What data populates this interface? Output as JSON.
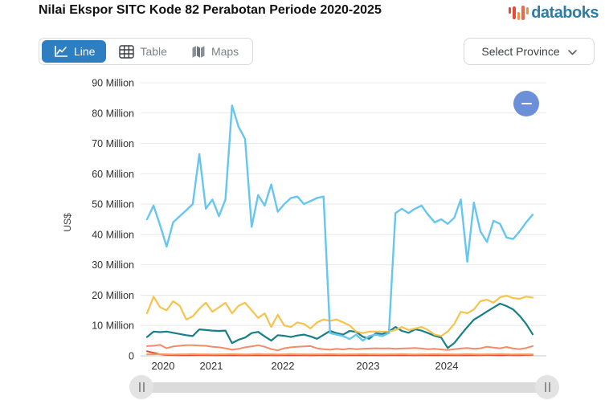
{
  "header": {
    "title": "Nilai Ekspor SITC Kode 82 Perabotan Periode 2020-2025",
    "logo_text": "databoks",
    "logo_bar_colors": [
      "#E64A36",
      "#E64A36",
      "#F29040",
      "#EA6A4E",
      "#F29040"
    ]
  },
  "toolbar": {
    "tabs": [
      {
        "label": "Line",
        "active": true,
        "icon": "line-chart-icon"
      },
      {
        "label": "Table",
        "active": false,
        "icon": "table-grid-icon"
      },
      {
        "label": "Maps",
        "active": false,
        "icon": "maps-icon"
      }
    ],
    "province_selector": {
      "label": "Select Province",
      "icon": "chevron-down-icon"
    }
  },
  "controls": {
    "zoom_out_button_icon": "minus-icon",
    "slider_handle_icon": "pause-bars-icon"
  },
  "accent_colors": {
    "active_tab_blue": "#2E7FC2",
    "zoom_button_blue": "#6B8FD9",
    "logo_text_blue": "#2E7BA6"
  },
  "chart_data": {
    "type": "line",
    "title": "Nilai Ekspor SITC Kode 82 Perabotan Periode 2020-2025",
    "ylabel": "US$",
    "unit": "US$ millions",
    "ylim_millions": [
      0,
      90
    ],
    "grid": true,
    "legend": "none",
    "y_ticks": [
      "0",
      "10 Million",
      "20 Million",
      "30 Million",
      "40 Million",
      "50 Million",
      "60 Million",
      "70 Million",
      "80 Million",
      "90 Million"
    ],
    "x_year_labels": [
      "2020",
      "2021",
      "2022",
      "2023",
      "2024"
    ],
    "x_range": "monthly, Jan 2020 - Dec 2024",
    "series": [
      {
        "name": "series-red",
        "color": "#E0492F",
        "width": 2,
        "values": [
          1.5,
          1.0,
          0.5,
          0.3,
          0.25,
          0.2,
          0.2,
          0.25,
          0.3,
          0.25,
          0.2,
          0.2,
          0.2,
          0.25,
          0.2,
          0.15,
          0.2,
          0.25,
          0.2,
          0.2,
          0.15,
          0.2,
          0.25,
          0.2,
          0.2,
          0.15,
          0.2,
          0.2,
          0.25,
          0.2,
          0.15,
          0.2,
          0.2,
          0.25,
          0.2,
          0.2,
          0.15,
          0.2,
          0.2,
          0.25,
          0.2,
          0.15,
          0.2,
          0.2,
          0.25,
          0.2,
          0.2,
          0.15,
          0.2,
          0.25,
          0.2,
          0.2,
          0.3,
          0.25,
          0.2,
          0.25,
          0.2,
          0.2,
          0.3,
          0.35
        ]
      },
      {
        "name": "series-orange",
        "color": "#F49A5F",
        "width": 2,
        "values": [
          0.5,
          0.5,
          0.55,
          0.5,
          0.45,
          0.5,
          0.5,
          0.55,
          0.5,
          0.5,
          0.45,
          0.5,
          0.5,
          0.55,
          0.5,
          0.45,
          0.5,
          0.55,
          0.5,
          0.5,
          0.45,
          0.5,
          0.55,
          0.5,
          0.5,
          0.45,
          0.5,
          0.5,
          0.55,
          0.5,
          0.45,
          0.5,
          0.5,
          0.55,
          0.5,
          0.5,
          0.45,
          0.5,
          0.5,
          0.55,
          0.5,
          0.45,
          0.5,
          0.5,
          0.55,
          0.5,
          0.5,
          0.45,
          0.5,
          0.55,
          0.5,
          0.45,
          0.5,
          0.5,
          0.55,
          0.5,
          0.45,
          0.5,
          0.5,
          0.5
        ]
      },
      {
        "name": "series-salmon",
        "color": "#F58A68",
        "width": 2,
        "values": [
          3.2,
          3.3,
          3.6,
          2.5,
          3.1,
          3.3,
          3.5,
          3.5,
          3.4,
          3.3,
          3.0,
          2.8,
          2.5,
          2.0,
          2.3,
          2.8,
          3.1,
          3.5,
          3.0,
          2.2,
          1.8,
          2.5,
          2.8,
          3.0,
          3.1,
          3.2,
          2.5,
          2.2,
          2.0,
          2.3,
          2.1,
          2.4,
          2.2,
          2.3,
          2.4,
          2.5,
          2.4,
          2.5,
          2.3,
          2.4,
          2.5,
          2.6,
          2.4,
          2.2,
          2.3,
          2.1,
          1.9,
          2.2,
          2.4,
          2.6,
          2.3,
          2.5,
          3.0,
          2.7,
          2.5,
          2.9,
          2.4,
          2.2,
          2.6,
          3.2
        ]
      },
      {
        "name": "series-teal",
        "color": "#168086",
        "width": 2.2,
        "values": [
          6.2,
          8.0,
          7.8,
          8.0,
          7.6,
          7.2,
          6.8,
          6.5,
          8.7,
          8.5,
          8.3,
          8.2,
          8.3,
          4.2,
          5.3,
          6.0,
          7.5,
          7.9,
          6.4,
          5.0,
          6.8,
          6.6,
          6.2,
          6.7,
          7.0,
          6.4,
          5.6,
          6.9,
          8.2,
          7.5,
          7.0,
          8.2,
          7.9,
          6.3,
          5.6,
          7.4,
          7.2,
          8.0,
          9.5,
          8.2,
          7.6,
          8.7,
          8.3,
          7.5,
          6.6,
          6.0,
          2.6,
          4.2,
          6.9,
          9.5,
          11.9,
          13.2,
          14.6,
          15.9,
          17.2,
          16.4,
          15.3,
          13.2,
          10.5,
          7.1
        ]
      },
      {
        "name": "series-yellow",
        "color": "#F6C34C",
        "width": 2.2,
        "values": [
          14,
          19.5,
          16,
          15,
          18,
          16.5,
          12,
          13,
          15.5,
          17.5,
          14.5,
          16,
          17.5,
          14,
          16.5,
          17.5,
          15,
          12.5,
          14,
          9.5,
          13.5,
          10,
          9.5,
          11,
          10.5,
          9,
          11,
          12,
          11.5,
          12,
          11,
          10,
          8,
          7.5,
          8,
          8,
          8,
          8,
          8.5,
          9.5,
          8.5,
          9,
          9.5,
          8.5,
          7,
          6.5,
          8,
          10.5,
          14.5,
          14,
          15.3,
          18,
          18.5,
          17.5,
          19.3,
          19.8,
          19,
          18.8,
          19.5,
          19.2
        ]
      },
      {
        "name": "series-light-blue",
        "color": "#67C6EF",
        "width": 2.4,
        "values": [
          45,
          49.5,
          43,
          36,
          44,
          46,
          48,
          50,
          66.5,
          48.5,
          51.5,
          46,
          51.5,
          82.5,
          75.5,
          71.5,
          42.5,
          53,
          49.5,
          56.5,
          47.5,
          50,
          52,
          52.5,
          50,
          51,
          52,
          52.5,
          7.5,
          7,
          6.5,
          5.5,
          7,
          5,
          6.5,
          7,
          6.5,
          7.5,
          47,
          48.5,
          47,
          48.5,
          49.5,
          46.5,
          44,
          45,
          43.5,
          45.5,
          51.5,
          31,
          50.5,
          41,
          37.5,
          44.5,
          43.5,
          39,
          38.5,
          41,
          44,
          46.5
        ]
      }
    ]
  }
}
